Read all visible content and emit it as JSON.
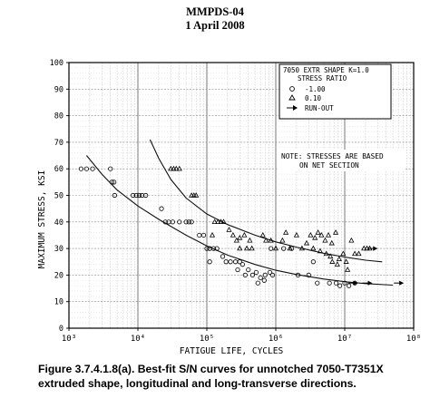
{
  "header": {
    "doc": "MMPDS-04",
    "date": "1 April 2008"
  },
  "caption": {
    "lines": [
      "Figure 3.7.4.1.8(a).  Best-fit S/N curves for unnotched 7050-T7351X",
      "extruded shape, longitudinal and long-transverse directions."
    ]
  },
  "chart_data": {
    "type": "scatter",
    "title": "",
    "xlabel": "FATIGUE LIFE, CYCLES",
    "ylabel": "MAXIMUM STRESS, KSI",
    "xscale": "log",
    "xlim": [
      1000,
      100000000
    ],
    "ylim": [
      0,
      100
    ],
    "grid": true,
    "x_ticks": [
      {
        "value": 1000,
        "label": "10³"
      },
      {
        "value": 10000,
        "label": "10⁴"
      },
      {
        "value": 100000,
        "label": "10⁵"
      },
      {
        "value": 1000000,
        "label": "10⁶"
      },
      {
        "value": 10000000,
        "label": "10⁷"
      },
      {
        "value": 100000000,
        "label": "10⁸"
      }
    ],
    "y_ticks": [
      {
        "value": 0,
        "label": "0"
      },
      {
        "value": 10,
        "label": "10"
      },
      {
        "value": 20,
        "label": "20"
      },
      {
        "value": 30,
        "label": "30"
      },
      {
        "value": 40,
        "label": "40"
      },
      {
        "value": 50,
        "label": "50"
      },
      {
        "value": 60,
        "label": "60"
      },
      {
        "value": 70,
        "label": "70"
      },
      {
        "value": 80,
        "label": "80"
      },
      {
        "value": 90,
        "label": "90"
      },
      {
        "value": 100,
        "label": "100"
      }
    ],
    "legend": {
      "placement": "top-right",
      "title": [
        "7050 EXTR SHAPE K=1.0",
        "STRESS RATIO"
      ],
      "entries": [
        {
          "symbol": "circle",
          "label": "-1.00"
        },
        {
          "symbol": "triangle",
          "label": "0.10"
        },
        {
          "symbol": "arrow",
          "label": "RUN-OUT"
        }
      ]
    },
    "note": [
      "NOTE: STRESSES ARE BASED",
      "ON NET SECTION"
    ],
    "series": [
      {
        "name": "-1.00",
        "symbol": "circle",
        "points": [
          [
            1500,
            60
          ],
          [
            1800,
            60
          ],
          [
            2200,
            60
          ],
          [
            4000,
            60
          ],
          [
            4200,
            55
          ],
          [
            4500,
            55
          ],
          [
            4600,
            50
          ],
          [
            8500,
            50
          ],
          [
            9500,
            50
          ],
          [
            10500,
            50
          ],
          [
            11500,
            50
          ],
          [
            13000,
            50
          ],
          [
            22000,
            45
          ],
          [
            25000,
            40
          ],
          [
            28000,
            40
          ],
          [
            32000,
            40
          ],
          [
            40000,
            40
          ],
          [
            50000,
            40
          ],
          [
            55000,
            40
          ],
          [
            60000,
            40
          ],
          [
            78000,
            35
          ],
          [
            90000,
            35
          ],
          [
            100000,
            30
          ],
          [
            110000,
            30
          ],
          [
            125000,
            30
          ],
          [
            140000,
            30
          ],
          [
            110000,
            25
          ],
          [
            170000,
            27
          ],
          [
            190000,
            25
          ],
          [
            220000,
            25
          ],
          [
            260000,
            25
          ],
          [
            300000,
            25
          ],
          [
            330000,
            24
          ],
          [
            280000,
            22
          ],
          [
            360000,
            20
          ],
          [
            400000,
            22
          ],
          [
            460000,
            20
          ],
          [
            520000,
            21
          ],
          [
            600000,
            19
          ],
          [
            700000,
            20
          ],
          [
            820000,
            21
          ],
          [
            900000,
            20
          ],
          [
            550000,
            17
          ],
          [
            680000,
            18
          ],
          [
            850000,
            30
          ],
          [
            1300000,
            30
          ],
          [
            1700000,
            30
          ],
          [
            2100000,
            20
          ],
          [
            3000000,
            20
          ],
          [
            3500000,
            25
          ],
          [
            4000000,
            17
          ],
          [
            6000000,
            17
          ],
          [
            7500000,
            17
          ],
          [
            8500000,
            16
          ],
          [
            10000000,
            17
          ],
          [
            11500000,
            16
          ],
          [
            14000000,
            17
          ]
        ]
      },
      {
        "name": "0.10",
        "symbol": "triangle",
        "points": [
          [
            30000,
            60
          ],
          [
            33000,
            60
          ],
          [
            36000,
            60
          ],
          [
            40000,
            60
          ],
          [
            60000,
            50
          ],
          [
            65000,
            50
          ],
          [
            70000,
            50
          ],
          [
            130000,
            40
          ],
          [
            145000,
            40
          ],
          [
            160000,
            40
          ],
          [
            175000,
            40
          ],
          [
            120000,
            35
          ],
          [
            210000,
            37
          ],
          [
            240000,
            35
          ],
          [
            270000,
            33
          ],
          [
            300000,
            34
          ],
          [
            350000,
            35
          ],
          [
            420000,
            33
          ],
          [
            300000,
            30
          ],
          [
            380000,
            30
          ],
          [
            450000,
            30
          ],
          [
            650000,
            35
          ],
          [
            720000,
            33
          ],
          [
            850000,
            33
          ],
          [
            1000000,
            30
          ],
          [
            1250000,
            33
          ],
          [
            1400000,
            36
          ],
          [
            1600000,
            30
          ],
          [
            2000000,
            35
          ],
          [
            2400000,
            30
          ],
          [
            2800000,
            32
          ],
          [
            3200000,
            35
          ],
          [
            3700000,
            34
          ],
          [
            4100000,
            36
          ],
          [
            4600000,
            35
          ],
          [
            5200000,
            33
          ],
          [
            5800000,
            35
          ],
          [
            6500000,
            32
          ],
          [
            7400000,
            36
          ],
          [
            3500000,
            30
          ],
          [
            4400000,
            29
          ],
          [
            5400000,
            28
          ],
          [
            6200000,
            27
          ],
          [
            6600000,
            25
          ],
          [
            7800000,
            24
          ],
          [
            8300000,
            26
          ],
          [
            9500000,
            28
          ],
          [
            10500000,
            25
          ],
          [
            11000000,
            22
          ],
          [
            12500000,
            33
          ],
          [
            14000000,
            28
          ],
          [
            16000000,
            28
          ],
          [
            19000000,
            30
          ],
          [
            21000000,
            30
          ],
          [
            23000000,
            30
          ]
        ]
      },
      {
        "name": "RUN-OUT",
        "symbol": "arrow",
        "points": [
          [
            25000000,
            30
          ],
          [
            13000000,
            17
          ],
          [
            21000000,
            17
          ],
          [
            60000000,
            17
          ]
        ]
      }
    ],
    "curves": [
      {
        "name": "-1.00",
        "points": [
          [
            1800,
            65
          ],
          [
            3000,
            58
          ],
          [
            5000,
            52
          ],
          [
            10000,
            46
          ],
          [
            20000,
            41
          ],
          [
            50000,
            35
          ],
          [
            100000,
            31
          ],
          [
            200000,
            27.5
          ],
          [
            500000,
            24
          ],
          [
            1000000,
            21.8
          ],
          [
            2000000,
            20.2
          ],
          [
            5000000,
            18.5
          ],
          [
            10000000,
            17.5
          ],
          [
            20000000,
            16.8
          ],
          [
            50000000,
            16.2
          ]
        ]
      },
      {
        "name": "0.10",
        "points": [
          [
            15000,
            71
          ],
          [
            20000,
            64
          ],
          [
            30000,
            56
          ],
          [
            50000,
            49
          ],
          [
            100000,
            43
          ],
          [
            200000,
            39
          ],
          [
            500000,
            35
          ],
          [
            1000000,
            32.5
          ],
          [
            2000000,
            30.5
          ],
          [
            5000000,
            28.2
          ],
          [
            10000000,
            26.8
          ],
          [
            20000000,
            25.6
          ],
          [
            35000000,
            25
          ]
        ]
      }
    ]
  }
}
